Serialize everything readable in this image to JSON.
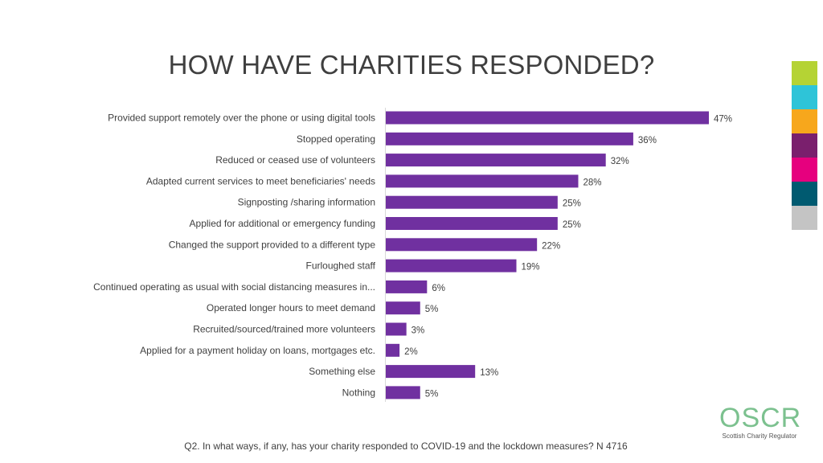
{
  "title": "HOW HAVE CHARITIES RESPONDED?",
  "footnote": "Q2. In what ways, if any, has your charity responded to COVID-19 and the lockdown measures?  N 4716",
  "logo": {
    "word": "OSCR",
    "subtitle": "Scottish Charity Regulator"
  },
  "brand_colors": [
    "#b5d334",
    "#2ec4d8",
    "#f7a71c",
    "#7a1f6d",
    "#e6007e",
    "#005a70",
    "#c4c4c4"
  ],
  "chart_data": {
    "type": "bar",
    "orientation": "horizontal",
    "bar_color": "#7030a0",
    "categories": [
      "Provided support remotely over the phone or using digital tools",
      "Stopped operating",
      "Reduced or ceased use of volunteers",
      "Adapted current services to meet beneficiaries' needs",
      "Signposting /sharing information",
      "Applied for additional or emergency funding",
      "Changed the support provided to a different type",
      "Furloughed staff",
      "Continued operating as usual with social distancing measures in...",
      "Operated longer hours to meet demand",
      "Recruited/sourced/trained more volunteers",
      "Applied for a payment holiday on loans, mortgages etc.",
      "Something else",
      "Nothing"
    ],
    "values": [
      47,
      36,
      32,
      28,
      25,
      25,
      22,
      19,
      6,
      5,
      3,
      2,
      13,
      5
    ],
    "value_labels": [
      "47%",
      "36%",
      "32%",
      "28%",
      "25%",
      "25%",
      "22%",
      "19%",
      "6%",
      "5%",
      "3%",
      "2%",
      "13%",
      "5%"
    ],
    "xlim": [
      0,
      47
    ],
    "grid": false,
    "legend": "none"
  }
}
